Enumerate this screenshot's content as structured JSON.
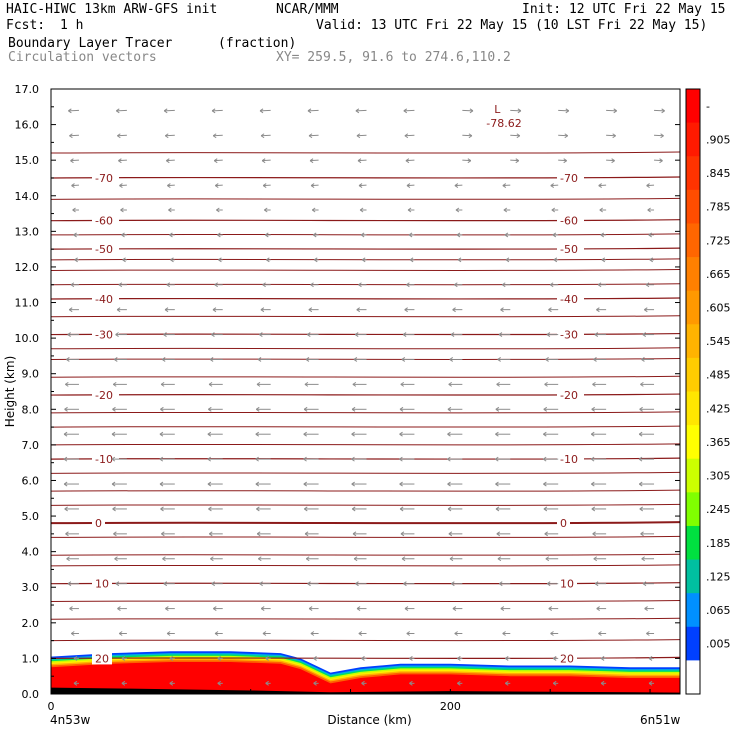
{
  "header": {
    "model": "HAIC-HIWC 13km ARW-GFS init",
    "org": "NCAR/MMM",
    "init": "Init: 12 UTC Fri 22 May 15",
    "fcst_label": "Fcst:",
    "fcst_value": "1 h",
    "valid": "Valid: 13 UTC Fri 22 May 15 (10 LST Fri 22 May 15)",
    "field1": "Boundary Layer Tracer",
    "field1_units": "(fraction)",
    "field2": "Circulation vectors",
    "xy": "XY= 259.5, 91.6 to 274.6,110.2"
  },
  "chart_data": {
    "type": "cross-section",
    "xlabel": "Distance (km)",
    "ylabel": "Height (km)",
    "x_ticks": [
      "0",
      "200"
    ],
    "x_left_label": "4n53w",
    "x_right_label": "6n51w",
    "xlim": [
      0,
      315
    ],
    "ylim": [
      0,
      17
    ],
    "y_ticks": [
      "0.0",
      "1.0",
      "2.0",
      "3.0",
      "4.0",
      "5.0",
      "6.0",
      "7.0",
      "8.0",
      "9.0",
      "10.0",
      "11.0",
      "12.0",
      "13.0",
      "14.0",
      "15.0",
      "16.0",
      "17.0"
    ],
    "temperature_contours": [
      {
        "label": "20",
        "height": 1.0
      },
      {
        "label": "10",
        "height": 3.1
      },
      {
        "label": "0",
        "height": 4.8
      },
      {
        "label": "-10",
        "height": 6.6
      },
      {
        "label": "-20",
        "height": 8.4
      },
      {
        "label": "-30",
        "height": 10.1
      },
      {
        "label": "-40",
        "height": 11.1
      },
      {
        "label": "-50",
        "height": 12.5
      },
      {
        "label": "-60",
        "height": 13.3
      },
      {
        "label": "-70",
        "height": 14.5
      }
    ],
    "unlabeled_contour_heights": [
      1.5,
      2.1,
      2.6,
      3.6,
      3.9,
      4.4,
      5.3,
      5.7,
      6.2,
      7.0,
      7.5,
      7.9,
      8.9,
      9.4,
      9.7,
      10.6,
      11.5,
      11.9,
      12.2,
      12.9,
      13.9,
      15.2
    ],
    "minimum_label": {
      "symbol": "L",
      "value": "-78.62",
      "x_km": 222,
      "height": 16.1
    },
    "tracer_top_profile": {
      "x_km": [
        0,
        30,
        60,
        90,
        115,
        125,
        140,
        155,
        175,
        200,
        230,
        260,
        290,
        315
      ],
      "height": [
        1.05,
        1.15,
        1.2,
        1.2,
        1.15,
        1.0,
        0.6,
        0.75,
        0.85,
        0.85,
        0.8,
        0.8,
        0.75,
        0.75
      ]
    },
    "colorbar": {
      "labels": [
        "-",
        ".905",
        ".845",
        ".785",
        ".725",
        ".665",
        ".605",
        ".545",
        ".485",
        ".425",
        ".365",
        ".305",
        ".245",
        ".185",
        ".125",
        ".065",
        ".005"
      ],
      "colors": [
        "#ff0000",
        "#ff1a00",
        "#ff3300",
        "#ff4d00",
        "#ff6600",
        "#ff8000",
        "#ff9900",
        "#ffb300",
        "#ffcc00",
        "#ffe600",
        "#ffff00",
        "#ccff00",
        "#80ff00",
        "#00e040",
        "#00c0a0",
        "#0090ff",
        "#0040ff",
        "#ffffff"
      ]
    }
  }
}
